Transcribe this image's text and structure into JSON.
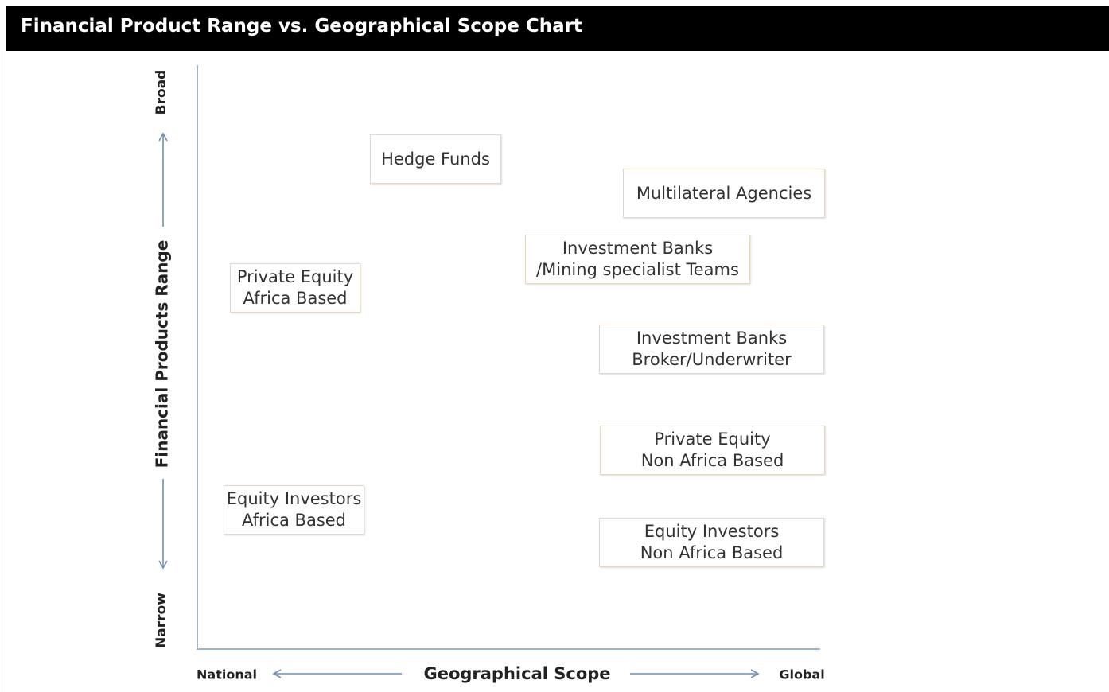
{
  "header": {
    "title": "Financial Product Range vs. Geographical Scope Chart"
  },
  "y_axis": {
    "label": "Financial Products Range",
    "top": "Broad",
    "bottom": "Narrow"
  },
  "x_axis": {
    "label": "Geographical Scope",
    "left": "National",
    "right": "Global"
  },
  "nodes": [
    {
      "lines": [
        "Hedge Funds"
      ]
    },
    {
      "lines": [
        "Multilateral Agencies"
      ]
    },
    {
      "lines": [
        "Investment Banks",
        "/Mining specialist Teams"
      ]
    },
    {
      "lines": [
        "Private Equity",
        "Africa Based"
      ]
    },
    {
      "lines": [
        "Investment Banks",
        "Broker/Underwriter"
      ]
    },
    {
      "lines": [
        "Private Equity",
        "Non Africa Based"
      ]
    },
    {
      "lines": [
        "Equity Investors",
        "Africa Based"
      ]
    },
    {
      "lines": [
        "Equity Investors",
        "Non Africa Based"
      ]
    }
  ]
}
